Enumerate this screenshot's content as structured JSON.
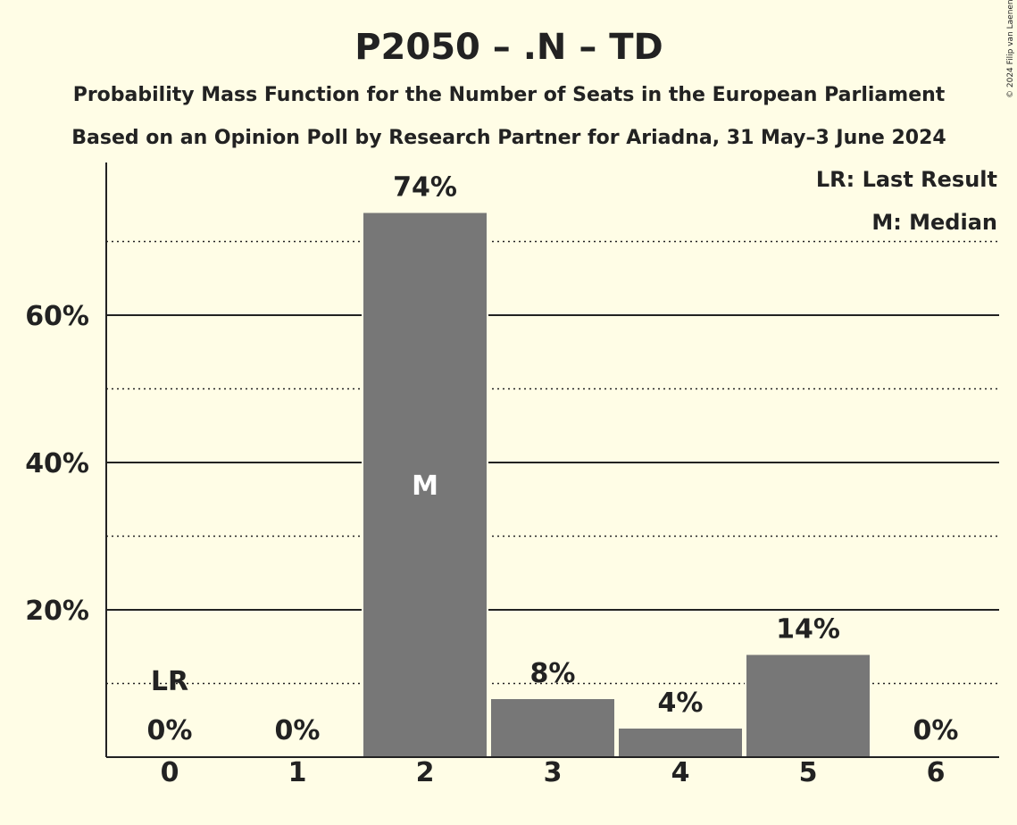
{
  "chart_data": {
    "type": "bar",
    "title": "P2050 – .N – TD",
    "subtitle_1": "Probability Mass Function for the Number of Seats in the European Parliament",
    "subtitle_2": "Based on an Opinion Poll by Research Partner for Ariadna, 31 May–3 June 2024",
    "categories": [
      "0",
      "1",
      "2",
      "3",
      "4",
      "5",
      "6"
    ],
    "values": [
      0,
      0,
      74,
      8,
      4,
      14,
      0
    ],
    "labels": [
      "0%",
      "0%",
      "74%",
      "8%",
      "4%",
      "14%",
      "0%"
    ],
    "ylim": [
      0,
      80
    ],
    "yticks": [
      {
        "value": 20,
        "label": "20%"
      },
      {
        "value": 40,
        "label": "40%"
      },
      {
        "value": 60,
        "label": "60%"
      }
    ],
    "minor_gridlines": [
      10,
      30,
      50,
      70
    ],
    "grid": true,
    "bar_color": "#777777",
    "last_result_category": "0",
    "last_result_marker": "LR",
    "median_category": "2",
    "median_marker": "M",
    "legend_position": "top-right",
    "legend": [
      "LR: Last Result",
      "M: Median"
    ],
    "copyright": "© 2024 Filip van Laenen"
  }
}
